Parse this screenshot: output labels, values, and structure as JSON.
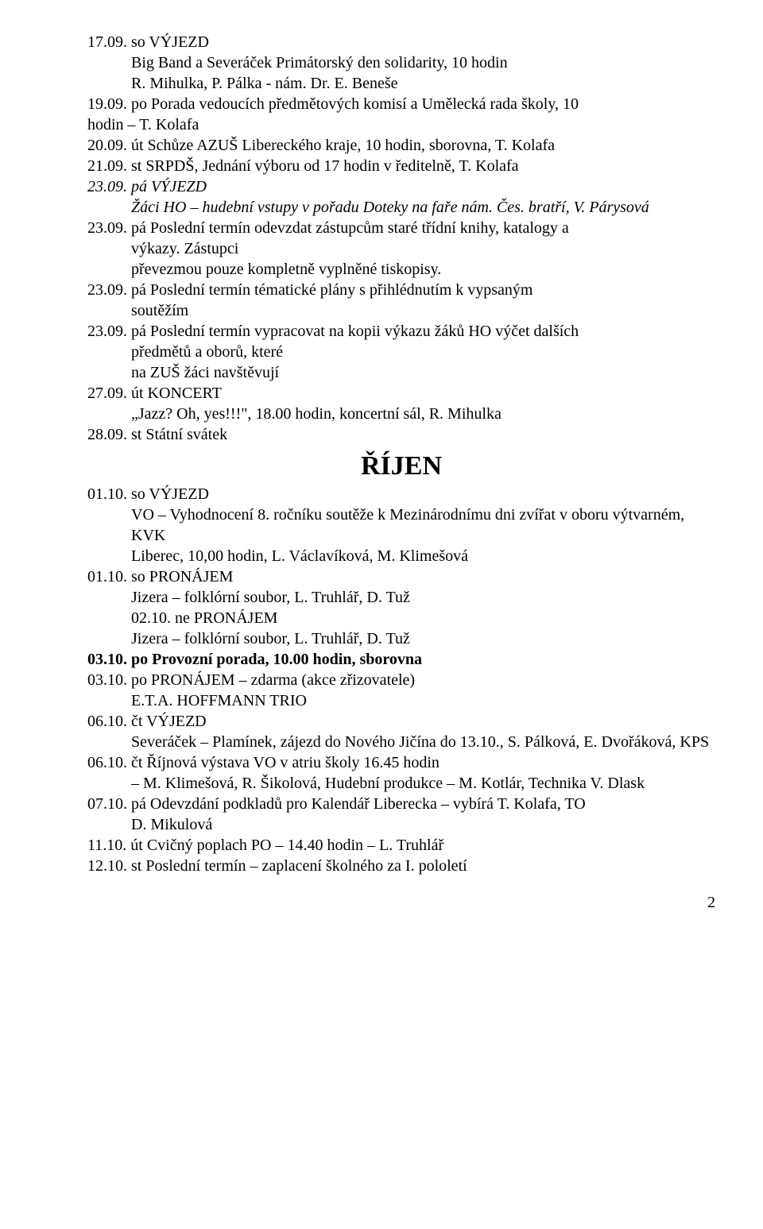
{
  "entries": [
    {
      "text": "17.09. so VÝJEZD",
      "indent": false,
      "italic": false,
      "bold": false
    },
    {
      "text": "Big Band a Severáček Primátorský den solidarity, 10 hodin",
      "indent": true,
      "italic": false,
      "bold": false
    },
    {
      "text": "R. Mihulka, P. Pálka - nám. Dr. E. Beneše",
      "indent": true,
      "italic": false,
      "bold": false
    },
    {
      "text": "19.09. po Porada vedoucích předmětových komisí a Umělecká rada školy, 10",
      "indent": false,
      "italic": false,
      "bold": false
    },
    {
      "text": "hodin – T. Kolafa",
      "indent": false,
      "italic": false,
      "bold": false
    },
    {
      "text": "20.09. út Schůze AZUŠ Libereckého kraje, 10 hodin, sborovna, T. Kolafa",
      "indent": false,
      "italic": false,
      "bold": false
    },
    {
      "text": "21.09. st SRPDŠ, Jednání výboru od 17 hodin v ředitelně, T. Kolafa",
      "indent": false,
      "italic": false,
      "bold": false
    },
    {
      "text": "23.09. pá VÝJEZD",
      "indent": false,
      "italic": true,
      "bold": false
    },
    {
      "text": "Žáci HO – hudební vstupy v pořadu Doteky na faře nám. Čes. bratří, V. Párysová",
      "indent": true,
      "italic": true,
      "bold": false
    },
    {
      "text": "23.09. pá Poslední termín odevzdat zástupcům staré třídní knihy, katalogy a",
      "indent": false,
      "italic": false,
      "bold": false
    },
    {
      "text": "výkazy. Zástupci",
      "indent": true,
      "italic": false,
      "bold": false
    },
    {
      "text": "převezmou pouze kompletně vyplněné tiskopisy.",
      "indent": true,
      "italic": false,
      "bold": false
    },
    {
      "text": "23.09. pá Poslední termín tématické plány s přihlédnutím k vypsaným",
      "indent": false,
      "italic": false,
      "bold": false
    },
    {
      "text": "soutěžím",
      "indent": true,
      "italic": false,
      "bold": false
    },
    {
      "text": "23.09. pá Poslední termín vypracovat na kopii výkazu žáků HO výčet dalších",
      "indent": false,
      "italic": false,
      "bold": false
    },
    {
      "text": "předmětů a oborů, které",
      "indent": true,
      "italic": false,
      "bold": false
    },
    {
      "text": "na ZUŠ žáci navštěvují",
      "indent": true,
      "italic": false,
      "bold": false
    },
    {
      "text": "27.09. út KONCERT",
      "indent": false,
      "italic": false,
      "bold": false
    },
    {
      "text": "„Jazz? Oh, yes!!!\", 18.00 hodin, koncertní sál, R. Mihulka",
      "indent": true,
      "italic": false,
      "bold": false
    },
    {
      "text": "28.09. st Státní svátek",
      "indent": false,
      "italic": false,
      "bold": false
    }
  ],
  "heading": "ŘÍJEN",
  "entries2": [
    {
      "text": "01.10. so VÝJEZD",
      "indent": false,
      "italic": false,
      "bold": false
    },
    {
      "text": "VO – Vyhodnocení 8. ročníku soutěže k Mezinárodnímu dni zvířat v oboru výtvarném, KVK",
      "indent": true,
      "italic": false,
      "bold": false
    },
    {
      "text": "Liberec, 10,00 hodin, L. Václavíková, M. Klimešová",
      "indent": true,
      "italic": false,
      "bold": false
    },
    {
      "text": "01.10. so PRONÁJEM",
      "indent": false,
      "italic": false,
      "bold": false
    },
    {
      "text": "Jizera – folklórní soubor, L. Truhlář, D. Tuž",
      "indent": true,
      "italic": false,
      "bold": false
    },
    {
      "text": "02.10. ne PRONÁJEM",
      "indent": true,
      "italic": false,
      "bold": false
    },
    {
      "text": "Jizera – folklórní soubor, L. Truhlář, D. Tuž",
      "indent": true,
      "italic": false,
      "bold": false
    },
    {
      "text": "03.10. po Provozní porada, 10.00 hodin, sborovna",
      "indent": false,
      "italic": false,
      "bold": true
    },
    {
      "text": "03.10. po PRONÁJEM – zdarma (akce zřizovatele)",
      "indent": false,
      "italic": false,
      "bold": false
    },
    {
      "text": "E.T.A. HOFFMANN TRIO",
      "indent": true,
      "italic": false,
      "bold": false
    },
    {
      "text": "06.10. čt VÝJEZD",
      "indent": false,
      "italic": false,
      "bold": false
    },
    {
      "text": "Severáček – Plamínek, zájezd do Nového Jičína do 13.10., S. Pálková, E. Dvořáková, KPS",
      "indent": true,
      "italic": false,
      "bold": false
    },
    {
      "text": "06.10. čt Říjnová výstava VO v atriu školy 16.45 hodin",
      "indent": false,
      "italic": false,
      "bold": false
    },
    {
      "text": "– M. Klimešová, R. Šikolová, Hudební produkce – M. Kotlár, Technika V. Dlask",
      "indent": true,
      "italic": false,
      "bold": false
    },
    {
      "text": "07.10. pá Odevzdání podkladů pro Kalendář Liberecka – vybírá T. Kolafa, TO",
      "indent": false,
      "italic": false,
      "bold": false
    },
    {
      "text": "D. Mikulová",
      "indent": true,
      "italic": false,
      "bold": false
    },
    {
      "text": "11.10. út Cvičný poplach PO – 14.40 hodin – L. Truhlář",
      "indent": false,
      "italic": false,
      "bold": false
    },
    {
      "text": "12.10. st Poslední termín – zaplacení školného za I. pololetí",
      "indent": false,
      "italic": false,
      "bold": false
    }
  ],
  "pageNumber": "2",
  "styles": {
    "fontFamily": "Times New Roman",
    "fontSize": 20,
    "headingFontSize": 34,
    "textColor": "#000000",
    "backgroundColor": "#ffffff",
    "indentPx": 55
  }
}
